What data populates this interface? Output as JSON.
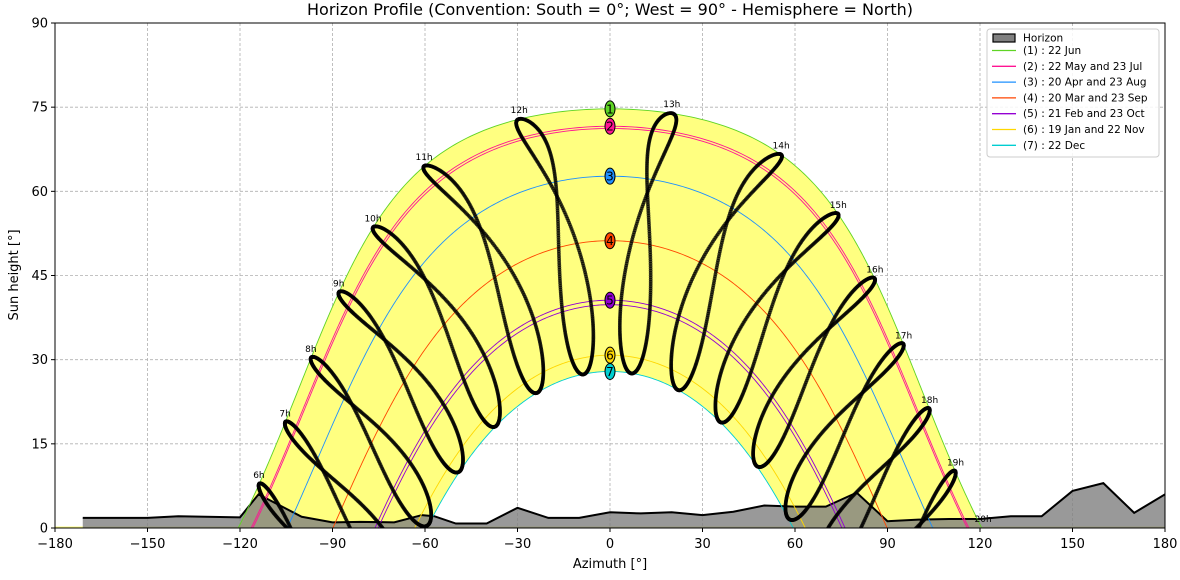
{
  "chart_data": {
    "type": "line",
    "title": "Horizon Profile (Convention: South = 0°; West = 90° - Hemisphere = North)",
    "xlabel": "Azimuth [°]",
    "ylabel": "Sun height [°]",
    "xlim": [
      -180,
      180
    ],
    "ylim": [
      0,
      90
    ],
    "xticks": [
      -180,
      -150,
      -120,
      -90,
      -60,
      -30,
      0,
      30,
      60,
      90,
      120,
      150,
      180
    ],
    "yticks": [
      0,
      15,
      30,
      45,
      60,
      75,
      90
    ],
    "grid": true,
    "legend_placement": "top-right",
    "horizon": {
      "name": "Horizon",
      "fill_color": "#808080",
      "azimuth": [
        -171,
        -150,
        -140,
        -120,
        -114,
        -100,
        -90,
        -81,
        -70,
        -61,
        -57,
        -50,
        -40,
        -30,
        -20,
        -10,
        0,
        10,
        20,
        30,
        40,
        50,
        60,
        70,
        80,
        90,
        100,
        110,
        120,
        130,
        140,
        150,
        160,
        170,
        180
      ],
      "height": [
        1.8,
        1.8,
        2.1,
        1.9,
        6.0,
        2.0,
        1.0,
        1.1,
        1.0,
        2.3,
        2.1,
        0.8,
        0.8,
        3.6,
        1.8,
        1.8,
        2.8,
        2.6,
        2.8,
        2.3,
        2.9,
        4.0,
        3.8,
        3.8,
        6.3,
        1.2,
        1.5,
        1.6,
        1.6,
        2.1,
        2.1,
        6.6,
        8.0,
        2.7,
        6.0
      ]
    },
    "series": [
      {
        "id": "1",
        "name": "(1) : 22 Jun",
        "color": "#5fd424",
        "noon_height": [
          74.7
        ]
      },
      {
        "id": "2",
        "name": "(2) : 22 May and 23 Jul",
        "color": "#ff1493",
        "noon_height": [
          71.6,
          71.2
        ]
      },
      {
        "id": "3",
        "name": "(3) : 20 Apr and 23 Aug",
        "color": "#1e90ff",
        "noon_height": [
          62.7
        ]
      },
      {
        "id": "4",
        "name": "(4) : 20 Mar and 23 Sep",
        "color": "#ff4500",
        "noon_height": [
          51.2
        ]
      },
      {
        "id": "5",
        "name": "(5) : 21 Feb and 23 Oct",
        "color": "#9400d3",
        "noon_height": [
          40.6,
          39.8
        ]
      },
      {
        "id": "6",
        "name": "(6) : 19 Jan and 22 Nov",
        "color": "#ffd700",
        "noon_height": [
          30.8
        ]
      },
      {
        "id": "7",
        "name": "(7) : 22 Dec",
        "color": "#00ced1",
        "noon_height": [
          27.9
        ]
      }
    ],
    "band_fill_color": "#ffff80",
    "analemma_color": "#000000",
    "hour_labels": [
      "6h",
      "7h",
      "8h",
      "9h",
      "10h",
      "11h",
      "12h",
      "13h",
      "14h",
      "15h",
      "16h",
      "17h",
      "18h",
      "19h",
      "20h"
    ]
  }
}
